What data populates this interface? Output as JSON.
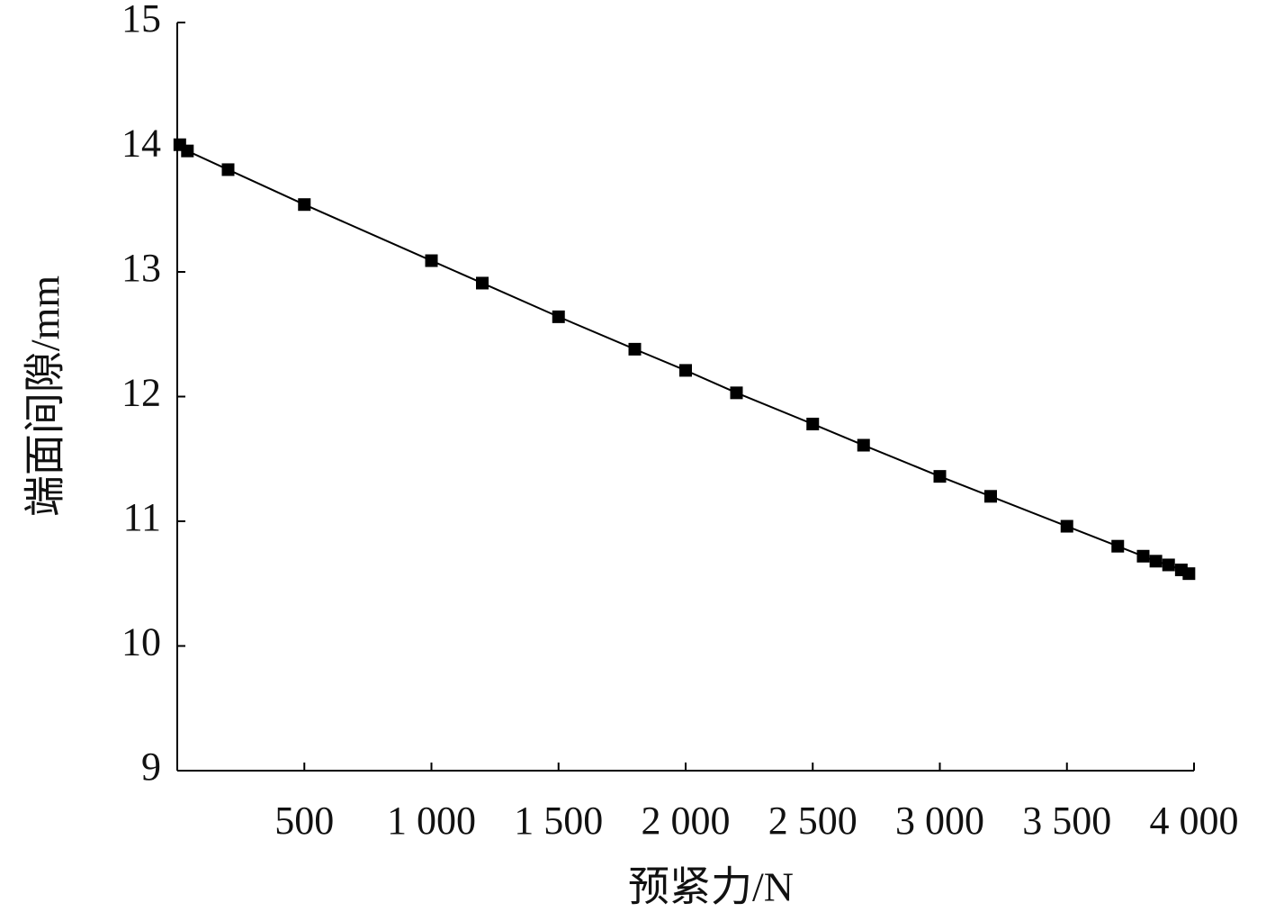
{
  "chart_data": {
    "type": "line",
    "x_label": "预紧力/N",
    "y_label": "端面间隙/mm",
    "x": [
      10,
      40,
      200,
      500,
      1000,
      1200,
      1500,
      1800,
      2000,
      2200,
      2500,
      2700,
      3000,
      3200,
      3500,
      3700,
      3800,
      3850,
      3900,
      3950,
      3980
    ],
    "series": [
      {
        "color": "#000000",
        "marker": "square",
        "values": [
          14.02,
          13.97,
          13.82,
          13.54,
          13.09,
          12.91,
          12.64,
          12.38,
          12.21,
          12.03,
          11.78,
          11.61,
          11.36,
          11.2,
          10.96,
          10.8,
          10.72,
          10.68,
          10.65,
          10.61,
          10.58
        ]
      }
    ],
    "xlim": [
      0,
      4000
    ],
    "xticks": [
      500,
      {
        "value": 1000,
        "label": "1 000"
      },
      {
        "value": 1500,
        "label": "1 500"
      },
      {
        "value": 2000,
        "label": "2 000"
      },
      {
        "value": 2500,
        "label": "2 500"
      },
      {
        "value": 3000,
        "label": "3 000"
      },
      {
        "value": 3500,
        "label": "3 500"
      },
      {
        "value": 4000,
        "label": "4 000"
      }
    ],
    "ylim": [
      9,
      15
    ],
    "yticks": [
      9,
      10,
      11,
      12,
      13,
      14,
      15
    ],
    "grid": false
  }
}
